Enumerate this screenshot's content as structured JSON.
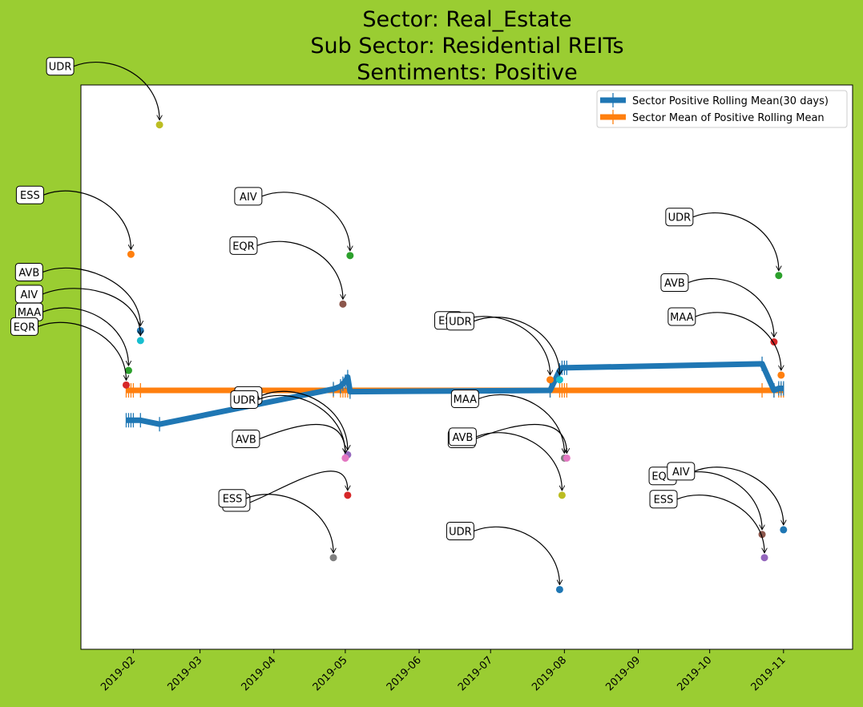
{
  "chart_data": {
    "type": "line",
    "title_lines": [
      "Sector:  Real_Estate",
      "Sub Sector:  Residential REITs",
      "Sentiments:  Positive"
    ],
    "xlabel": "",
    "ylabel": "",
    "xlim": [
      "2019-01-10",
      "2019-11-30"
    ],
    "x_ticks": [
      "2019-02",
      "2019-03",
      "2019-04",
      "2019-05",
      "2019-06",
      "2019-07",
      "2019-08",
      "2019-09",
      "2019-10",
      "2019-11"
    ],
    "y_ticks_visible": false,
    "grid": false,
    "legend_position": "upper right",
    "colors": {
      "figure_bg": "#9acd32",
      "axes_bg": "#ffffff",
      "rolling": "#1f77b4",
      "mean": "#ff7f0e"
    },
    "series": [
      {
        "name": "Sector Positive Rolling Mean(30 days)",
        "x": [
          "2019-01-29",
          "2019-01-30",
          "2019-01-31",
          "2019-02-01",
          "2019-02-04",
          "2019-02-12",
          "2019-04-26",
          "2019-04-29",
          "2019-04-30",
          "2019-05-01",
          "2019-05-02",
          "2019-05-03",
          "2019-07-26",
          "2019-07-30",
          "2019-07-31",
          "2019-08-01",
          "2019-08-02",
          "2019-10-23",
          "2019-10-28",
          "2019-10-30",
          "2019-10-31",
          "2019-11-01"
        ],
        "values": [
          0.345,
          0.345,
          0.345,
          0.345,
          0.345,
          0.339,
          0.392,
          0.396,
          0.4,
          0.403,
          0.41,
          0.388,
          0.39,
          0.42,
          0.424,
          0.424,
          0.424,
          0.43,
          0.39,
          0.393,
          0.393,
          0.393
        ]
      },
      {
        "name": "Sector Mean of Positive Rolling Mean",
        "x": [
          "2019-01-29",
          "2019-01-30",
          "2019-01-31",
          "2019-02-01",
          "2019-02-04",
          "2019-04-26",
          "2019-04-29",
          "2019-04-30",
          "2019-05-01",
          "2019-05-02",
          "2019-05-03",
          "2019-07-26",
          "2019-07-30",
          "2019-07-31",
          "2019-08-01",
          "2019-08-02",
          "2019-10-23",
          "2019-10-28",
          "2019-10-30",
          "2019-10-31",
          "2019-11-01"
        ],
        "values": [
          0.39,
          0.39,
          0.39,
          0.39,
          0.39,
          0.39,
          0.39,
          0.39,
          0.39,
          0.39,
          0.39,
          0.39,
          0.39,
          0.39,
          0.39,
          0.39,
          0.39,
          0.39,
          0.39,
          0.39,
          0.39
        ]
      }
    ],
    "annotations": [
      {
        "label": "UDR",
        "x": "2019-02-12",
        "y": 0.79,
        "color": "#bcbd22"
      },
      {
        "label": "ESS",
        "x": "2019-01-31",
        "y": 0.595,
        "color": "#ff7f0e"
      },
      {
        "label": "AVB",
        "x": "2019-02-04",
        "y": 0.48,
        "color": "#1f77b4"
      },
      {
        "label": "AIV",
        "x": "2019-02-04",
        "y": 0.465,
        "color": "#17becf"
      },
      {
        "label": "MAA",
        "x": "2019-01-30",
        "y": 0.42,
        "color": "#2ca02c"
      },
      {
        "label": "EQR",
        "x": "2019-01-29",
        "y": 0.398,
        "color": "#d62728"
      },
      {
        "label": "AIV",
        "x": "2019-05-03",
        "y": 0.593,
        "color": "#2ca02c"
      },
      {
        "label": "EQR",
        "x": "2019-04-30",
        "y": 0.52,
        "color": "#8c564b"
      },
      {
        "label": "MAA",
        "x": "2019-05-02",
        "y": 0.293,
        "color": "#9467bd"
      },
      {
        "label": "UDR",
        "x": "2019-05-01",
        "y": 0.288,
        "color": "#e377c2"
      },
      {
        "label": "AVB",
        "x": "2019-05-01",
        "y": 0.288,
        "color": "#e377c2"
      },
      {
        "label": "ESS",
        "x": "2019-05-02",
        "y": 0.232,
        "color": "#d62728"
      },
      {
        "label": "ESS",
        "x": "2019-04-26",
        "y": 0.138,
        "color": "#7f7f7f"
      },
      {
        "label": "ESS",
        "x": "2019-07-26",
        "y": 0.406,
        "color": "#ff7f0e"
      },
      {
        "label": "UDR",
        "x": "2019-07-30",
        "y": 0.406,
        "color": "#17becf"
      },
      {
        "label": "MAA",
        "x": "2019-08-01",
        "y": 0.288,
        "color": "#7f7f7f"
      },
      {
        "label": "AVB",
        "x": "2019-08-02",
        "y": 0.288,
        "color": "#e377c2"
      },
      {
        "label": "AVB",
        "x": "2019-07-31",
        "y": 0.232,
        "color": "#bcbd22"
      },
      {
        "label": "UDR",
        "x": "2019-07-30",
        "y": 0.09,
        "color": "#1f77b4"
      },
      {
        "label": "UDR",
        "x": "2019-10-30",
        "y": 0.563,
        "color": "#2ca02c"
      },
      {
        "label": "AVB",
        "x": "2019-10-28",
        "y": 0.463,
        "color": "#d62728"
      },
      {
        "label": "MAA",
        "x": "2019-10-31",
        "y": 0.413,
        "color": "#ff7f0e"
      },
      {
        "label": "EQR",
        "x": "2019-10-23",
        "y": 0.173,
        "color": "#8c564b"
      },
      {
        "label": "AIV",
        "x": "2019-11-01",
        "y": 0.18,
        "color": "#1f77b4"
      },
      {
        "label": "ESS",
        "x": "2019-10-24",
        "y": 0.138,
        "color": "#9467bd"
      }
    ]
  }
}
